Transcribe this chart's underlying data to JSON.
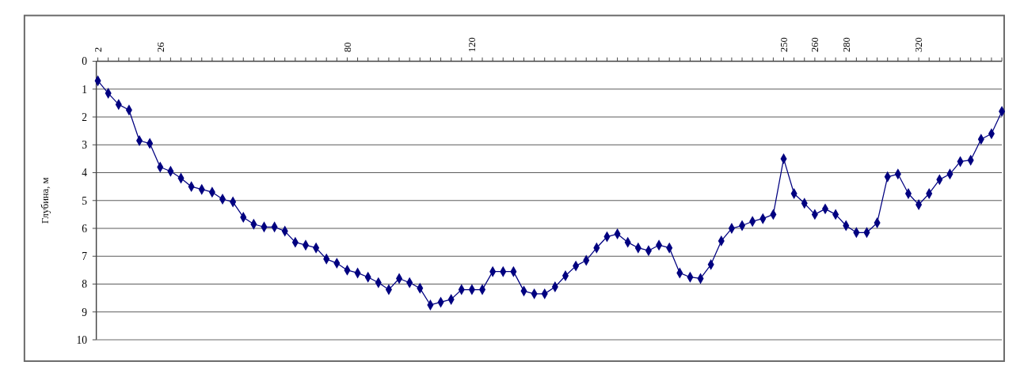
{
  "chart_data": {
    "type": "line",
    "ylabel": "Глубина, м",
    "categories": [
      "2",
      null,
      null,
      null,
      null,
      null,
      "26",
      null,
      null,
      null,
      null,
      null,
      null,
      null,
      null,
      null,
      null,
      null,
      null,
      null,
      null,
      null,
      null,
      null,
      "80",
      null,
      null,
      null,
      null,
      null,
      null,
      null,
      null,
      null,
      null,
      null,
      "120",
      null,
      null,
      null,
      null,
      null,
      null,
      null,
      null,
      null,
      null,
      null,
      null,
      null,
      null,
      null,
      null,
      null,
      null,
      null,
      null,
      null,
      null,
      null,
      null,
      null,
      null,
      null,
      null,
      null,
      "250",
      null,
      null,
      "260",
      null,
      null,
      "280",
      null,
      null,
      null,
      null,
      null,
      null,
      "320",
      null,
      null,
      null,
      null,
      null,
      null,
      null,
      null
    ],
    "series": [
      {
        "color": "#000080",
        "values": [
          0.7,
          1.15,
          1.55,
          1.75,
          2.85,
          2.95,
          3.8,
          3.95,
          4.2,
          4.5,
          4.6,
          4.7,
          4.95,
          5.05,
          5.6,
          5.85,
          5.95,
          5.95,
          6.1,
          6.5,
          6.6,
          6.7,
          7.1,
          7.25,
          7.5,
          7.6,
          7.75,
          7.95,
          8.2,
          7.8,
          7.95,
          8.15,
          8.75,
          8.65,
          8.55,
          8.2,
          8.2,
          8.2,
          7.55,
          7.55,
          7.55,
          8.25,
          8.35,
          8.35,
          8.1,
          7.7,
          7.35,
          7.15,
          6.7,
          6.3,
          6.2,
          6.5,
          6.7,
          6.8,
          6.6,
          6.7,
          7.6,
          7.75,
          7.8,
          7.3,
          6.45,
          6.0,
          5.9,
          5.75,
          5.65,
          5.5,
          3.5,
          4.75,
          5.1,
          5.5,
          5.3,
          5.5,
          5.9,
          6.15,
          6.15,
          5.8,
          4.15,
          4.05,
          4.75,
          5.15,
          4.75,
          4.25,
          4.05,
          3.6,
          3.55,
          2.8,
          2.6,
          1.8
        ]
      }
    ],
    "ylim": [
      10,
      0
    ],
    "yticks": [
      0,
      1,
      2,
      3,
      4,
      5,
      6,
      7,
      8,
      9,
      10
    ],
    "grid": "y",
    "marker": "diamond",
    "line_style": "solid"
  }
}
